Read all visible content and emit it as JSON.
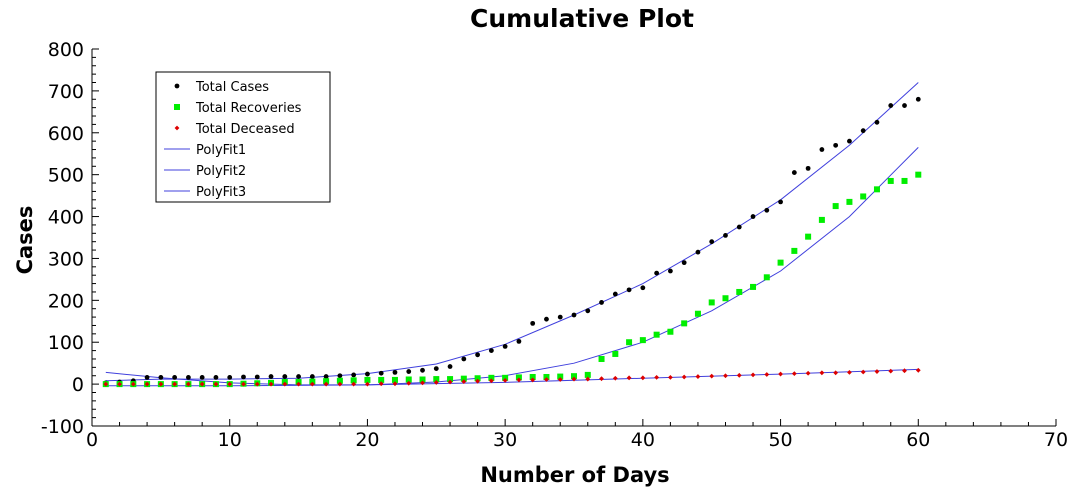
{
  "chart_data": {
    "type": "scatter",
    "title": "Cumulative Plot",
    "xlabel": "Number of Days",
    "ylabel": "Cases",
    "xlim": [
      0,
      70
    ],
    "ylim": [
      -100,
      800
    ],
    "xticks": [
      0,
      10,
      20,
      30,
      40,
      50,
      60,
      70
    ],
    "yticks": [
      -100,
      0,
      100,
      200,
      300,
      400,
      500,
      600,
      700,
      800
    ],
    "grid": false,
    "legend_position": "top-left",
    "series": [
      {
        "name": "Total Cases",
        "kind": "points",
        "marker": "circle",
        "color": "#000000",
        "x": [
          1,
          2,
          3,
          4,
          5,
          6,
          7,
          8,
          9,
          10,
          11,
          12,
          13,
          14,
          15,
          16,
          17,
          18,
          19,
          20,
          21,
          22,
          23,
          24,
          25,
          26,
          27,
          28,
          29,
          30,
          31,
          32,
          33,
          34,
          35,
          36,
          37,
          38,
          39,
          40,
          41,
          42,
          43,
          44,
          45,
          46,
          47,
          48,
          49,
          50,
          51,
          52,
          53,
          54,
          55,
          56,
          57,
          58,
          59,
          60
        ],
        "y": [
          3,
          5,
          8,
          16,
          16,
          16,
          16,
          16,
          16,
          16,
          17,
          17,
          18,
          18,
          18,
          18,
          18,
          20,
          22,
          24,
          26,
          28,
          30,
          33,
          37,
          42,
          60,
          70,
          80,
          90,
          102,
          145,
          155,
          160,
          165,
          175,
          195,
          215,
          225,
          230,
          265,
          270,
          290,
          315,
          340,
          355,
          375,
          400,
          415,
          435,
          505,
          515,
          560,
          570,
          580,
          605,
          625,
          665,
          665,
          680
        ]
      },
      {
        "name": "Total Recoveries",
        "kind": "points",
        "marker": "square",
        "color": "#00ee00",
        "x": [
          1,
          2,
          3,
          4,
          5,
          6,
          7,
          8,
          9,
          10,
          11,
          12,
          13,
          14,
          15,
          16,
          17,
          18,
          19,
          20,
          21,
          22,
          23,
          24,
          25,
          26,
          27,
          28,
          29,
          30,
          31,
          32,
          33,
          34,
          35,
          36,
          37,
          38,
          39,
          40,
          41,
          42,
          43,
          44,
          45,
          46,
          47,
          48,
          49,
          50,
          51,
          52,
          53,
          54,
          55,
          56,
          57,
          58,
          59,
          60
        ],
        "y": [
          0,
          0,
          0,
          0,
          0,
          0,
          0,
          0,
          0,
          0,
          1,
          2,
          3,
          5,
          5,
          6,
          7,
          8,
          9,
          10,
          10,
          10,
          11,
          11,
          12,
          12,
          13,
          14,
          15,
          15,
          16,
          17,
          17,
          18,
          19,
          22,
          60,
          72,
          100,
          105,
          118,
          125,
          145,
          168,
          195,
          205,
          220,
          232,
          255,
          290,
          318,
          352,
          392,
          425,
          435,
          448,
          465,
          485,
          485,
          500
        ]
      },
      {
        "name": "Total Deceased",
        "kind": "points",
        "marker": "diamond",
        "color": "#dd0000",
        "x": [
          1,
          2,
          3,
          4,
          5,
          6,
          7,
          8,
          9,
          10,
          11,
          12,
          13,
          14,
          15,
          16,
          17,
          18,
          19,
          20,
          21,
          22,
          23,
          24,
          25,
          26,
          27,
          28,
          29,
          30,
          31,
          32,
          33,
          34,
          35,
          36,
          37,
          38,
          39,
          40,
          41,
          42,
          43,
          44,
          45,
          46,
          47,
          48,
          49,
          50,
          51,
          52,
          53,
          54,
          55,
          56,
          57,
          58,
          59,
          60
        ],
        "y": [
          0,
          0,
          0,
          0,
          0,
          0,
          0,
          0,
          0,
          0,
          0,
          0,
          0,
          0,
          0,
          0,
          0,
          0,
          0,
          0,
          1,
          1,
          2,
          3,
          4,
          5,
          6,
          7,
          8,
          9,
          10,
          10,
          11,
          11,
          12,
          12,
          13,
          14,
          15,
          15,
          16,
          16,
          17,
          18,
          19,
          20,
          21,
          22,
          23,
          24,
          25,
          26,
          27,
          27,
          28,
          29,
          30,
          31,
          32,
          33
        ]
      },
      {
        "name": "PolyFit1",
        "kind": "line",
        "color": "#4040dd",
        "x": [
          1,
          5,
          10,
          15,
          20,
          25,
          30,
          35,
          40,
          45,
          50,
          55,
          60
        ],
        "y": [
          8,
          12,
          12,
          14,
          25,
          48,
          95,
          165,
          240,
          335,
          440,
          570,
          720
        ]
      },
      {
        "name": "PolyFit2",
        "kind": "line",
        "color": "#4040dd",
        "x": [
          1,
          5,
          10,
          15,
          20,
          25,
          30,
          35,
          40,
          45,
          50,
          55,
          60
        ],
        "y": [
          28,
          15,
          3,
          -2,
          -2,
          5,
          20,
          50,
          100,
          175,
          270,
          400,
          565
        ]
      },
      {
        "name": "PolyFit3",
        "kind": "line",
        "color": "#4040dd",
        "x": [
          1,
          10,
          20,
          30,
          40,
          50,
          60
        ],
        "y": [
          -4,
          -4,
          -2,
          4,
          14,
          24,
          35
        ]
      }
    ]
  }
}
